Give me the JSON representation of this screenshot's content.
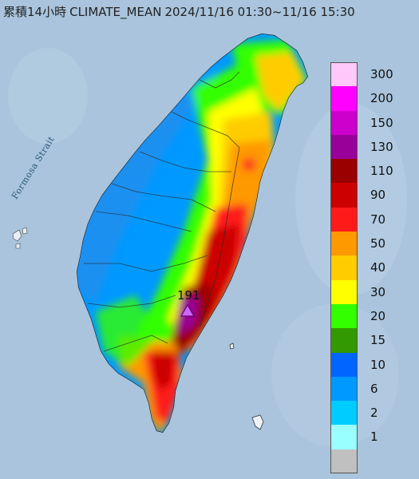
{
  "title": {
    "prefix": "累積14小時",
    "model": "CLIMATE_MEAN",
    "period": "2024/11/16 01:30~11/16 15:30"
  },
  "sea_label": "Formosa Strait",
  "max_marker": {
    "value": "191",
    "icon": "triangle-max-icon"
  },
  "legend": {
    "items": [
      {
        "label": "300",
        "color": "#ffc8fa"
      },
      {
        "label": "200",
        "color": "#ff00ff"
      },
      {
        "label": "150",
        "color": "#cc00cc"
      },
      {
        "label": "130",
        "color": "#990099"
      },
      {
        "label": "110",
        "color": "#990000"
      },
      {
        "label": "90",
        "color": "#cc0000"
      },
      {
        "label": "70",
        "color": "#ff1a1a"
      },
      {
        "label": "50",
        "color": "#ff9900"
      },
      {
        "label": "40",
        "color": "#ffcc00"
      },
      {
        "label": "30",
        "color": "#ffff00"
      },
      {
        "label": "20",
        "color": "#33ff00"
      },
      {
        "label": "15",
        "color": "#339900"
      },
      {
        "label": "10",
        "color": "#0066ff"
      },
      {
        "label": "6",
        "color": "#0099ff"
      },
      {
        "label": "2",
        "color": "#00ccff"
      },
      {
        "label": "1",
        "color": "#99ffff"
      },
      {
        "label": "",
        "color": "#c0c0c0"
      }
    ]
  },
  "colors": {
    "sea": "#a9c4dc",
    "outline": "#333333"
  }
}
